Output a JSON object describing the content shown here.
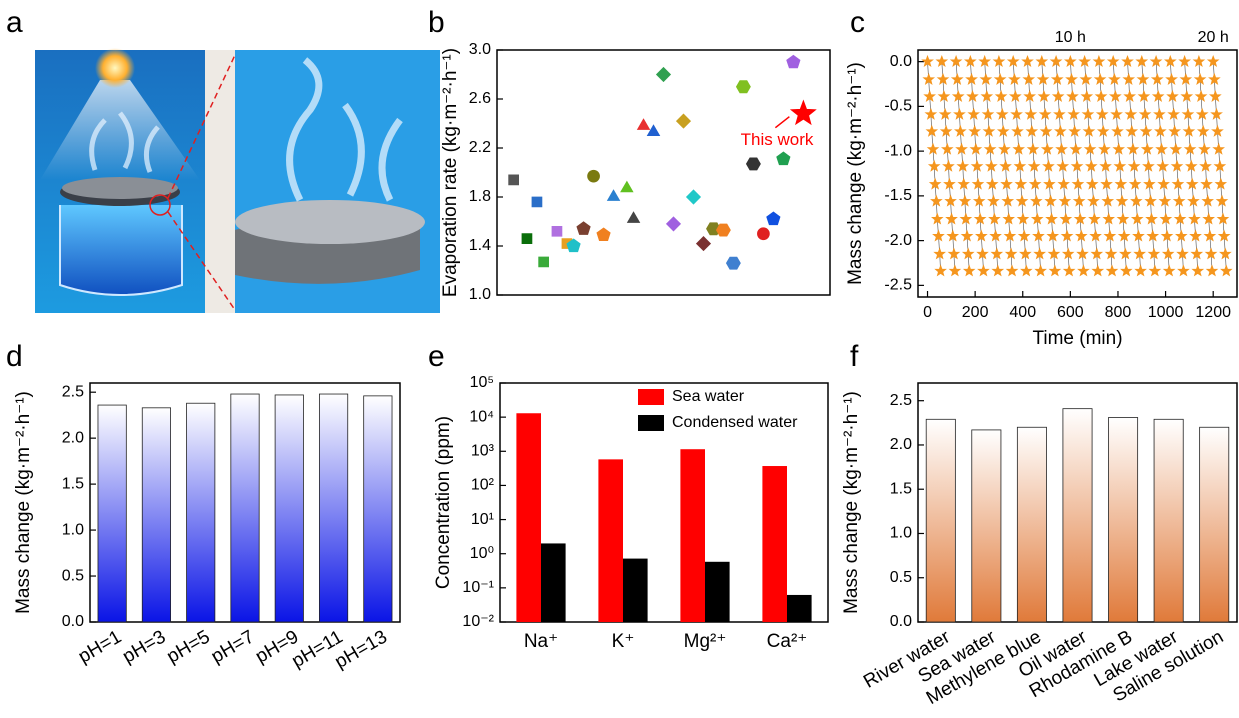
{
  "figure_a": {
    "panel": "a"
  },
  "chart_data": [
    {
      "panel": "b",
      "type": "scatter",
      "ylabel": "Evaporation rate (kg·m⁻²·h⁻¹)",
      "ylim": [
        1.0,
        3.0
      ],
      "yticks": [
        {
          "value": 1,
          "label": "1.0"
        },
        1.4,
        1.8,
        2.2,
        2.6,
        {
          "value": 3,
          "label": "3.0"
        }
      ],
      "xlim": [
        0,
        100
      ],
      "x": [
        5,
        9,
        12,
        18,
        14,
        21,
        23,
        29,
        26,
        32,
        35,
        39,
        41,
        44,
        47,
        50,
        53,
        56,
        59,
        62,
        65,
        68,
        71,
        74,
        77,
        80,
        83,
        86,
        89
      ],
      "values": [
        1.94,
        1.46,
        1.76,
        1.52,
        1.27,
        1.42,
        1.4,
        1.97,
        1.54,
        1.49,
        1.8,
        1.87,
        1.62,
        2.38,
        2.33,
        2.8,
        1.58,
        2.42,
        1.8,
        1.42,
        1.54,
        1.53,
        1.26,
        2.7,
        2.07,
        1.5,
        1.62,
        2.11,
        2.9
      ],
      "colors": [
        "#555555",
        "#0a6e0a",
        "#2a6ec8",
        "#b070e0",
        "#3aaa3a",
        "#e8a020",
        "#20c0c8",
        "#7a7a10",
        "#7a4030",
        "#f08020",
        "#2a80d0",
        "#60c020",
        "#444444",
        "#e83030",
        "#2060d0",
        "#30a050",
        "#a060e0",
        "#c8a020",
        "#20c8c8",
        "#7a3030",
        "#808020",
        "#f08020",
        "#4080d0",
        "#80c020",
        "#333333",
        "#e02020",
        "#1050e0",
        "#20a050",
        "#a060e0"
      ],
      "markers": [
        "square",
        "square",
        "square",
        "square",
        "square",
        "square",
        "pentagon",
        "circle",
        "pentagon",
        "pentagon",
        "triangle",
        "triangle",
        "triangle",
        "triangle",
        "triangle",
        "diamond",
        "diamond",
        "diamond",
        "diamond",
        "diamond",
        "hexagon",
        "hexagon",
        "hexagon",
        "hexagon",
        "hexagon",
        "circle",
        "pentagon",
        "pentagon",
        "pentagon"
      ],
      "highlight": {
        "x": 92,
        "y": 2.48,
        "color": "#ff0000",
        "marker": "star",
        "label": "This work"
      }
    },
    {
      "panel": "c",
      "type": "line",
      "ylabel": "Mass change (kg·m⁻²·h⁻¹)",
      "xlabel": "Time (min)",
      "color": "#f5961e",
      "marker": "star",
      "xlim": [
        -40,
        1300
      ],
      "xticks": [
        0,
        200,
        400,
        600,
        800,
        1000,
        1200
      ],
      "ylim": [
        -2.63,
        0.13
      ],
      "yticks": [
        {
          "value": 0,
          "label": "0.0"
        },
        -0.5,
        {
          "value": -1,
          "label": "-1.0"
        },
        -1.5,
        {
          "value": -2,
          "label": "-2.0"
        },
        -2.5
      ],
      "annotations": [
        {
          "x": 600,
          "text": "10 h"
        },
        {
          "x": 1200,
          "text": "20 h"
        }
      ],
      "series": [
        {
          "x": [
            0,
            5,
            9,
            14,
            18,
            23,
            28,
            32,
            37,
            41,
            46,
            51,
            55
          ],
          "values": [
            0,
            -0.2,
            -0.39,
            -0.59,
            -0.78,
            -0.98,
            -1.17,
            -1.37,
            -1.56,
            -1.76,
            -1.95,
            -2.15,
            -2.34
          ]
        },
        {
          "x": [
            60,
            65,
            69,
            74,
            78,
            83,
            88,
            92,
            97,
            101,
            106,
            111,
            115
          ],
          "values": [
            0,
            -0.2,
            -0.39,
            -0.59,
            -0.78,
            -0.98,
            -1.17,
            -1.37,
            -1.56,
            -1.76,
            -1.95,
            -2.15,
            -2.34
          ]
        },
        {
          "x": [
            120,
            125,
            129,
            134,
            138,
            143,
            148,
            152,
            157,
            161,
            166,
            171,
            175
          ],
          "values": [
            0,
            -0.2,
            -0.39,
            -0.59,
            -0.78,
            -0.98,
            -1.17,
            -1.37,
            -1.56,
            -1.76,
            -1.95,
            -2.15,
            -2.34
          ]
        },
        {
          "x": [
            180,
            185,
            189,
            194,
            198,
            203,
            208,
            212,
            217,
            221,
            226,
            231,
            235
          ],
          "values": [
            0,
            -0.2,
            -0.39,
            -0.59,
            -0.78,
            -0.98,
            -1.17,
            -1.37,
            -1.56,
            -1.76,
            -1.95,
            -2.15,
            -2.34
          ]
        },
        {
          "x": [
            240,
            245,
            249,
            254,
            258,
            263,
            268,
            272,
            277,
            281,
            286,
            291,
            295
          ],
          "values": [
            0,
            -0.2,
            -0.39,
            -0.59,
            -0.78,
            -0.98,
            -1.17,
            -1.37,
            -1.56,
            -1.76,
            -1.95,
            -2.15,
            -2.34
          ]
        },
        {
          "x": [
            300,
            305,
            309,
            314,
            318,
            323,
            328,
            332,
            337,
            341,
            346,
            351,
            355
          ],
          "values": [
            0,
            -0.2,
            -0.39,
            -0.59,
            -0.78,
            -0.98,
            -1.17,
            -1.37,
            -1.56,
            -1.76,
            -1.95,
            -2.15,
            -2.34
          ]
        },
        {
          "x": [
            360,
            365,
            369,
            374,
            378,
            383,
            388,
            392,
            397,
            401,
            406,
            411,
            415
          ],
          "values": [
            0,
            -0.2,
            -0.39,
            -0.59,
            -0.78,
            -0.98,
            -1.17,
            -1.37,
            -1.56,
            -1.76,
            -1.95,
            -2.15,
            -2.34
          ]
        },
        {
          "x": [
            420,
            425,
            429,
            434,
            438,
            443,
            448,
            452,
            457,
            461,
            466,
            471,
            475
          ],
          "values": [
            0,
            -0.2,
            -0.39,
            -0.59,
            -0.78,
            -0.98,
            -1.17,
            -1.37,
            -1.56,
            -1.76,
            -1.95,
            -2.15,
            -2.34
          ]
        },
        {
          "x": [
            480,
            485,
            489,
            494,
            498,
            503,
            508,
            512,
            517,
            521,
            526,
            531,
            535
          ],
          "values": [
            0,
            -0.2,
            -0.39,
            -0.59,
            -0.78,
            -0.98,
            -1.17,
            -1.37,
            -1.56,
            -1.76,
            -1.95,
            -2.15,
            -2.34
          ]
        },
        {
          "x": [
            540,
            545,
            549,
            554,
            558,
            563,
            568,
            572,
            577,
            581,
            586,
            591,
            595
          ],
          "values": [
            0,
            -0.2,
            -0.39,
            -0.59,
            -0.78,
            -0.98,
            -1.17,
            -1.37,
            -1.56,
            -1.76,
            -1.95,
            -2.15,
            -2.34
          ]
        },
        {
          "x": [
            600,
            605,
            609,
            614,
            618,
            623,
            628,
            632,
            637,
            641,
            646,
            651,
            655
          ],
          "values": [
            0,
            -0.2,
            -0.39,
            -0.59,
            -0.78,
            -0.98,
            -1.17,
            -1.37,
            -1.56,
            -1.76,
            -1.95,
            -2.15,
            -2.34
          ]
        },
        {
          "x": [
            660,
            665,
            669,
            674,
            678,
            683,
            688,
            692,
            697,
            701,
            706,
            711,
            715
          ],
          "values": [
            0,
            -0.2,
            -0.39,
            -0.59,
            -0.78,
            -0.98,
            -1.17,
            -1.37,
            -1.56,
            -1.76,
            -1.95,
            -2.15,
            -2.34
          ]
        },
        {
          "x": [
            720,
            725,
            729,
            734,
            738,
            743,
            748,
            752,
            757,
            761,
            766,
            771,
            775
          ],
          "values": [
            0,
            -0.2,
            -0.39,
            -0.59,
            -0.78,
            -0.98,
            -1.17,
            -1.37,
            -1.56,
            -1.76,
            -1.95,
            -2.15,
            -2.34
          ]
        },
        {
          "x": [
            780,
            785,
            789,
            794,
            798,
            803,
            808,
            812,
            817,
            821,
            826,
            831,
            835
          ],
          "values": [
            0,
            -0.2,
            -0.39,
            -0.59,
            -0.78,
            -0.98,
            -1.17,
            -1.37,
            -1.56,
            -1.76,
            -1.95,
            -2.15,
            -2.34
          ]
        },
        {
          "x": [
            840,
            845,
            849,
            854,
            858,
            863,
            868,
            872,
            877,
            881,
            886,
            891,
            895
          ],
          "values": [
            0,
            -0.2,
            -0.39,
            -0.59,
            -0.78,
            -0.98,
            -1.17,
            -1.37,
            -1.56,
            -1.76,
            -1.95,
            -2.15,
            -2.34
          ]
        },
        {
          "x": [
            900,
            905,
            909,
            914,
            918,
            923,
            928,
            932,
            937,
            941,
            946,
            951,
            955
          ],
          "values": [
            0,
            -0.2,
            -0.39,
            -0.59,
            -0.78,
            -0.98,
            -1.17,
            -1.37,
            -1.56,
            -1.76,
            -1.95,
            -2.15,
            -2.34
          ]
        },
        {
          "x": [
            960,
            965,
            969,
            974,
            978,
            983,
            988,
            992,
            997,
            1001,
            1006,
            1011,
            1015
          ],
          "values": [
            0,
            -0.2,
            -0.39,
            -0.59,
            -0.78,
            -0.98,
            -1.17,
            -1.37,
            -1.56,
            -1.76,
            -1.95,
            -2.15,
            -2.34
          ]
        },
        {
          "x": [
            1020,
            1025,
            1029,
            1034,
            1038,
            1043,
            1048,
            1052,
            1057,
            1061,
            1066,
            1071,
            1075
          ],
          "values": [
            0,
            -0.2,
            -0.39,
            -0.59,
            -0.78,
            -0.98,
            -1.17,
            -1.37,
            -1.56,
            -1.76,
            -1.95,
            -2.15,
            -2.34
          ]
        },
        {
          "x": [
            1080,
            1085,
            1089,
            1094,
            1098,
            1103,
            1108,
            1112,
            1117,
            1121,
            1126,
            1131,
            1135
          ],
          "values": [
            0,
            -0.2,
            -0.39,
            -0.59,
            -0.78,
            -0.98,
            -1.17,
            -1.37,
            -1.56,
            -1.76,
            -1.95,
            -2.15,
            -2.34
          ]
        },
        {
          "x": [
            1140,
            1145,
            1149,
            1154,
            1158,
            1163,
            1168,
            1172,
            1177,
            1181,
            1186,
            1191,
            1195
          ],
          "values": [
            0,
            -0.2,
            -0.39,
            -0.59,
            -0.78,
            -0.98,
            -1.17,
            -1.37,
            -1.56,
            -1.76,
            -1.95,
            -2.15,
            -2.34
          ]
        },
        {
          "x": [
            1200,
            1205,
            1209,
            1214,
            1218,
            1223,
            1228,
            1232,
            1237,
            1241,
            1246,
            1251,
            1255
          ],
          "values": [
            0,
            -0.2,
            -0.39,
            -0.59,
            -0.78,
            -0.98,
            -1.17,
            -1.37,
            -1.56,
            -1.76,
            -1.95,
            -2.15,
            -2.34
          ]
        }
      ]
    },
    {
      "panel": "d",
      "type": "bar",
      "ylabel": "Mass change (kg·m⁻²·h⁻¹)",
      "color": "#0a14e6",
      "categories": [
        "pH=1",
        "pH=3",
        "pH=5",
        "pH=7",
        "pH=9",
        "pH=11",
        "pH=13"
      ],
      "values": [
        2.36,
        2.33,
        2.38,
        2.48,
        2.47,
        2.48,
        2.46
      ],
      "ylim": [
        0,
        2.6
      ],
      "yticks": [
        {
          "value": 0,
          "label": "0.0"
        },
        0.5,
        {
          "value": 1,
          "label": "1.0"
        },
        1.5,
        {
          "value": 2,
          "label": "2.0"
        },
        2.5
      ]
    },
    {
      "panel": "e",
      "type": "grouped_bar",
      "ylabel": "Concentration (ppm)",
      "log_y": true,
      "legend": "upper right",
      "categories": [
        "Na⁺",
        "K⁺",
        "Mg²⁺",
        "Ca²⁺"
      ],
      "series": [
        {
          "name": "Sea water",
          "color": "#ff0000",
          "values": [
            13000,
            580,
            1150,
            370
          ]
        },
        {
          "name": "Condensed water",
          "color": "#000000",
          "values": [
            2.0,
            0.72,
            0.58,
            0.062
          ]
        }
      ],
      "ylim": [
        0.01,
        100000
      ],
      "yticks": [
        {
          "value": 0.01,
          "label": "10⁻²"
        },
        {
          "value": 0.1,
          "label": "10⁻¹"
        },
        {
          "value": 1,
          "label": "10⁰"
        },
        {
          "value": 10,
          "label": "10¹"
        },
        {
          "value": 100,
          "label": "10²"
        },
        {
          "value": 1000,
          "label": "10³"
        },
        {
          "value": 10000,
          "label": "10⁴"
        },
        {
          "value": 100000,
          "label": "10⁵"
        }
      ]
    },
    {
      "panel": "f",
      "type": "bar",
      "ylabel": "Mass change (kg·m⁻²·h⁻¹)",
      "color": "#e07a3a",
      "categories": [
        "River water",
        "Sea water",
        "Methylene blue",
        "Oil water",
        "Rhodamine B",
        "Lake water",
        "Saline solution"
      ],
      "values": [
        2.29,
        2.17,
        2.2,
        2.41,
        2.31,
        2.29,
        2.2
      ],
      "ylim": [
        0,
        2.7
      ],
      "yticks": [
        {
          "value": 0,
          "label": "0.0"
        },
        0.5,
        {
          "value": 1,
          "label": "1.0"
        },
        1.5,
        {
          "value": 2,
          "label": "2.0"
        },
        2.5
      ]
    }
  ]
}
